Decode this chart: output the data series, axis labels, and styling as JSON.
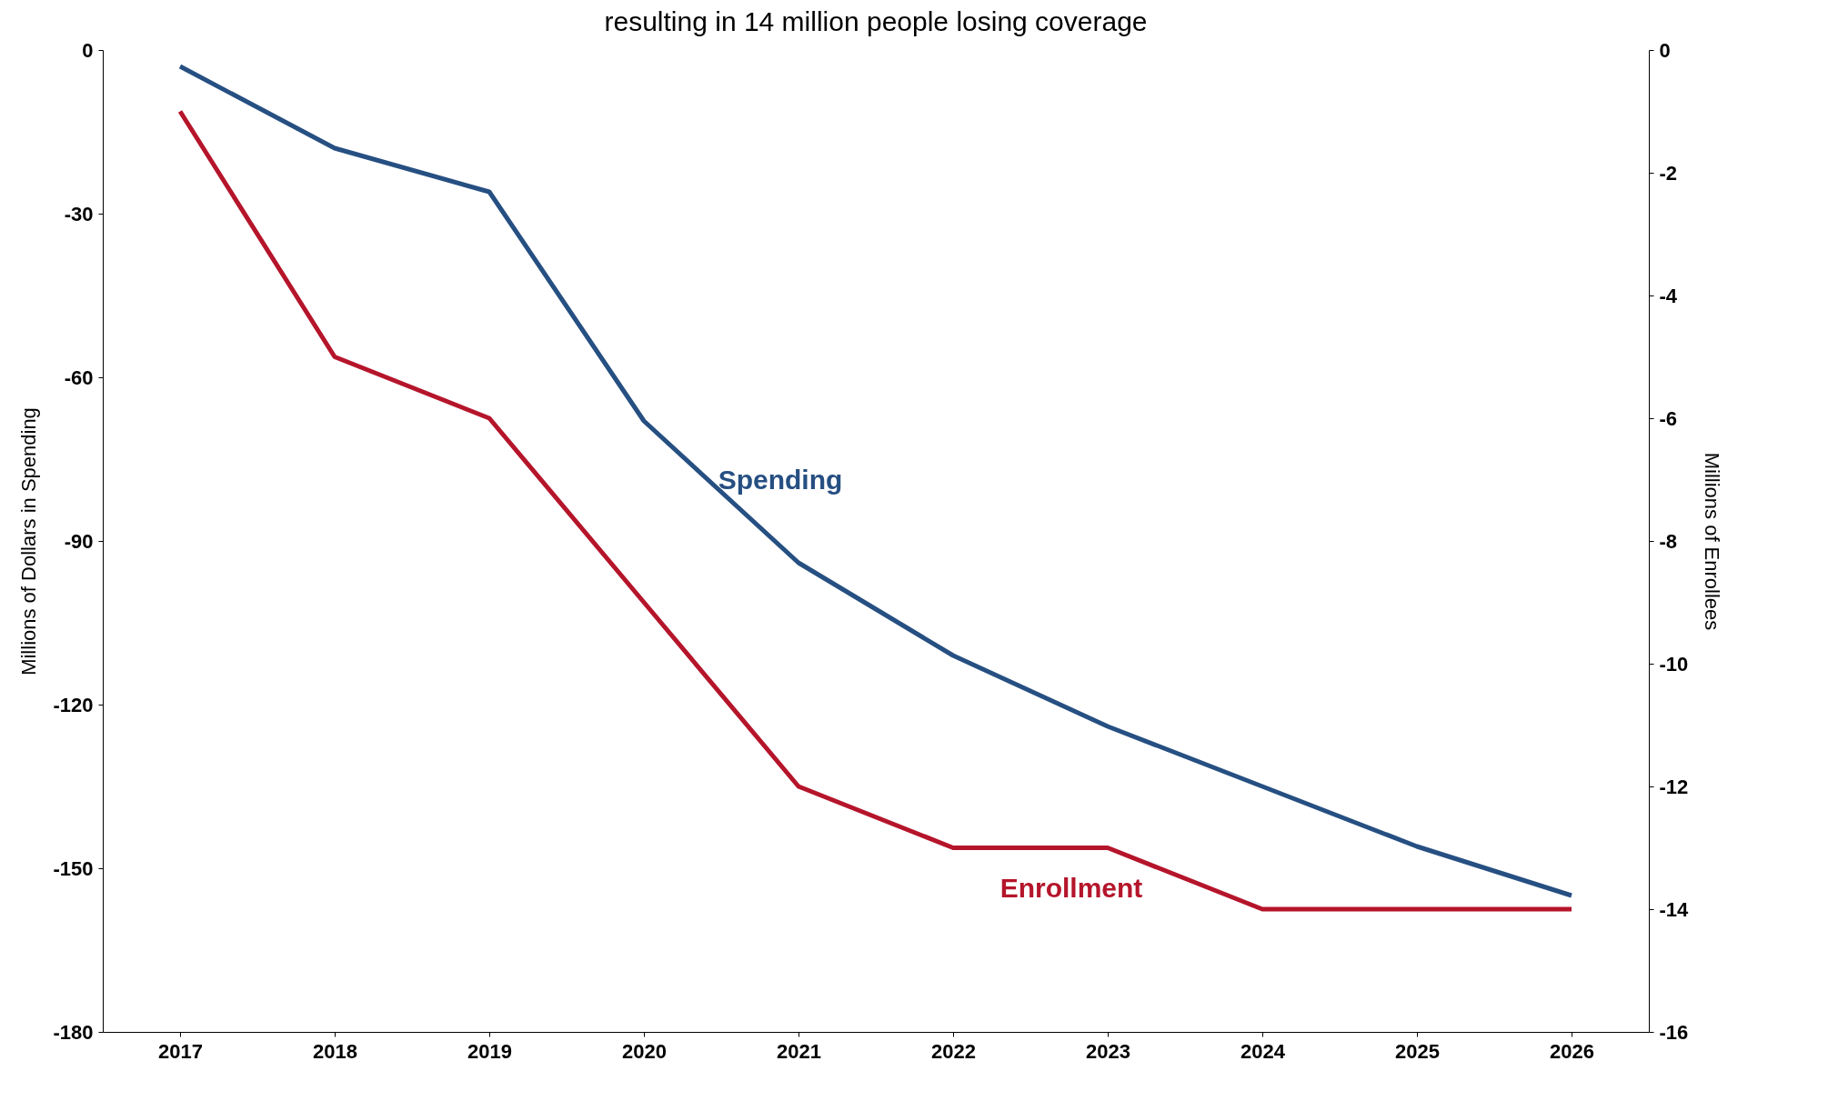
{
  "chart_data": {
    "type": "line",
    "title": "resulting in 14 million people losing coverage",
    "ylabel": "Millions of Dollars in Spending",
    "y2label": "Millions of Enrollees",
    "categories": [
      "2017",
      "2018",
      "2019",
      "2020",
      "2021",
      "2022",
      "2023",
      "2024",
      "2025",
      "2026"
    ],
    "series": [
      {
        "name": "Spending",
        "color": "#264f82",
        "values": [
          -3,
          -18,
          -26,
          -68,
          -94,
          -111,
          -124,
          -135,
          -146,
          -155
        ]
      },
      {
        "name": "Enrollment",
        "color": "#b5152b",
        "axis": "y2",
        "values": [
          -1,
          -5,
          -6,
          -9,
          -12,
          -13,
          -13,
          -14,
          -14,
          -14
        ]
      }
    ],
    "ylim": [
      -180,
      0
    ],
    "yticks": [
      -180,
      -150,
      -120,
      -90,
      -60,
      -30,
      0
    ],
    "y2lim": [
      -16,
      0
    ],
    "y2ticks": [
      -16,
      -14,
      -12,
      -10,
      -8,
      -6,
      -4,
      -2,
      0
    ],
    "grid": false,
    "legend": false,
    "marker": "none",
    "line_style": "solid"
  }
}
